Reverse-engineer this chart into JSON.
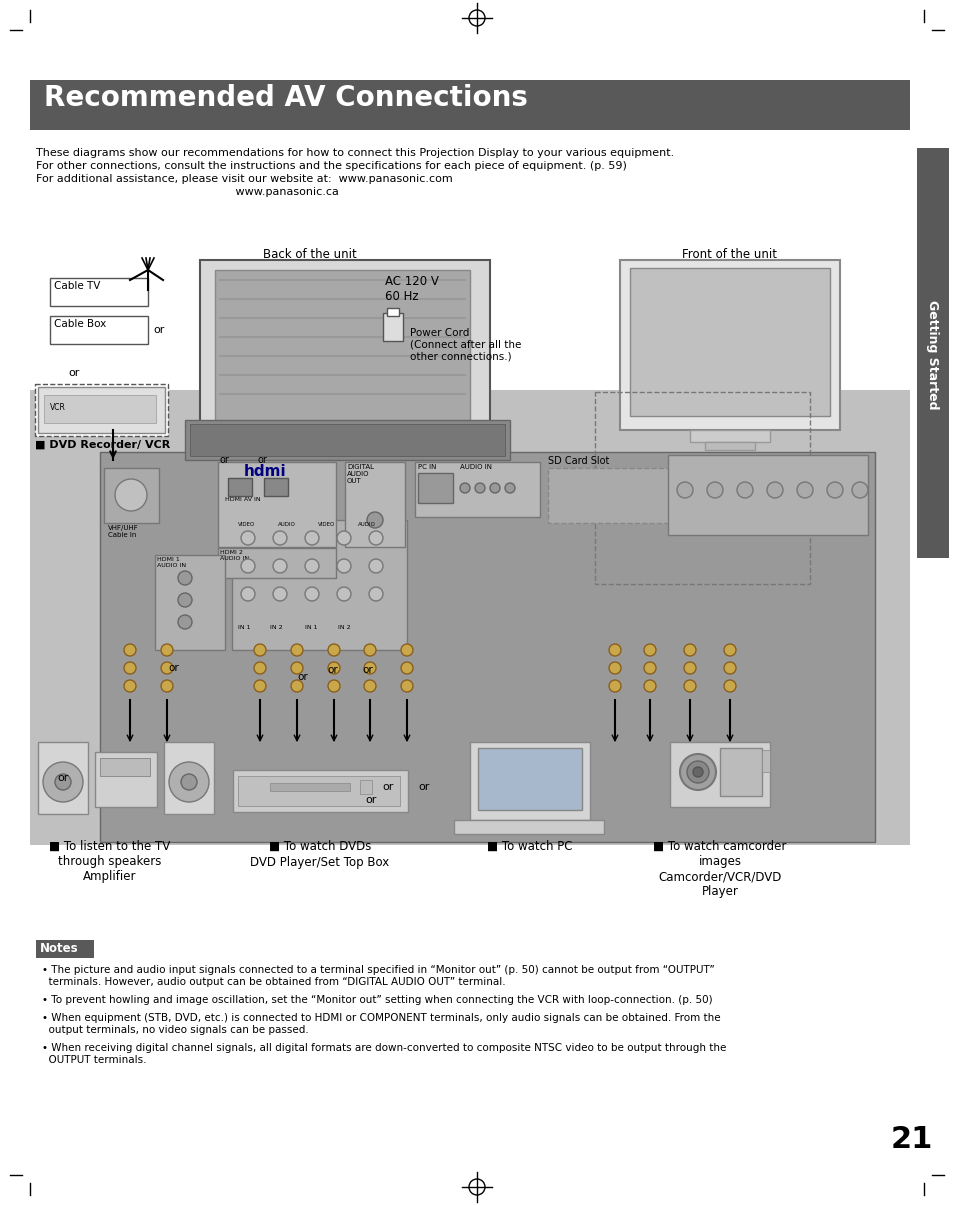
{
  "title": "Recommended AV Connections",
  "title_bg": "#595959",
  "title_color": "#ffffff",
  "page_bg": "#ffffff",
  "page_number": "21",
  "intro_lines": [
    "These diagrams show our recommendations for how to connect this Projection Display to your various equipment.",
    "For other connections, consult the instructions and the specifications for each piece of equipment. (p. 59)",
    "For additional assistance, please visit our website at:  www.panasonic.com",
    "                                                         www.panasonic.ca"
  ],
  "back_label": "Back of the unit",
  "front_label": "Front of the unit",
  "ac_label": "AC 120 V\n60 Hz",
  "power_cord_label": "Power Cord\n(Connect after all the\nother connections.)",
  "cable_tv": "Cable TV",
  "cable_box": "Cable Box",
  "dvd_vcr_label": "■ DVD Recorder/ VCR",
  "sd_card_label": "SD Card Slot",
  "bottom_labels": [
    [
      "■ To listen to the TV\nthrough speakers",
      "Amplifier"
    ],
    [
      "■ To watch DVDs",
      "DVD Player/Set Top Box"
    ],
    [
      "■ To watch PC",
      ""
    ],
    [
      "■ To watch camcorder\nimages",
      "Camcorder/VCR/DVD\nPlayer"
    ]
  ],
  "notes_bg": "#595959",
  "notes_title": "Notes",
  "notes_color": "#ffffff",
  "note_bullets": [
    "The picture and audio input signals connected to a terminal specified in “Monitor out” (p. 50) cannot be output from “OUTPUT”\n  terminals. However, audio output can be obtained from “DIGITAL AUDIO OUT” terminal.",
    "To prevent howling and image oscillation, set the “Monitor out” setting when connecting the VCR with loop-connection. (p. 50)",
    "When equipment (STB, DVD, etc.) is connected to HDMI or COMPONENT terminals, only audio signals can be obtained. From the\n  output terminals, no video signals can be passed.",
    "When receiving digital channel signals, all digital formats are down-converted to composite NTSC video to be output through the\n  OUTPUT terminals."
  ],
  "sidebar_text": "Getting Started",
  "sidebar_bg": "#595959"
}
